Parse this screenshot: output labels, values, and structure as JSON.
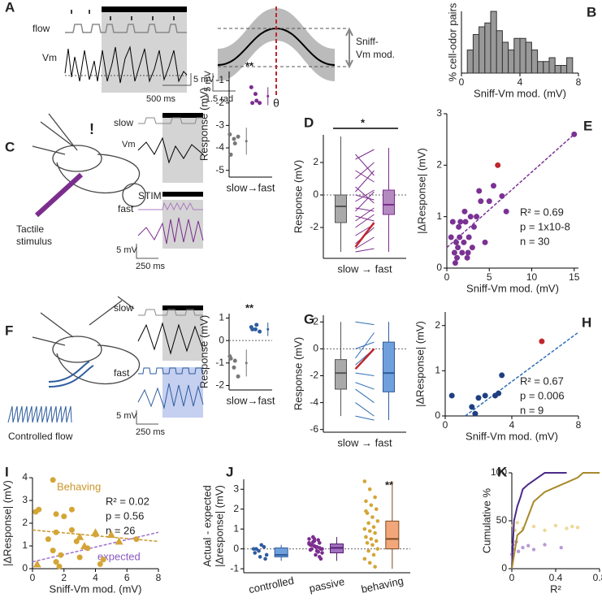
{
  "text": {
    "A": "A",
    "flow": "flow",
    "vm": "Vm",
    "a_scale_v": "5 mV",
    "a_scale_t": "500 ms",
    "a2_scale_v": "5 mV",
    "a2_scale_t": "1.5 rad",
    "theta": "θ",
    "sniff1": "Sniff-",
    "sniff2": "Vm mod.",
    "c_tactile1": "Tactile",
    "c_tactile2": "stimulus",
    "c_excl": "!",
    "c_slow": "slow",
    "c_vm": "Vm",
    "c_stim": "STIM",
    "c_fast": "fast",
    "c_scale_v": "5 mV",
    "c_scale_t": "250 ms",
    "f_slow": "slow",
    "f_fast": "fast",
    "f_scale_v": "5 mV",
    "f_scale_t": "250 ms",
    "f_flow": "Controlled flow"
  },
  "chart_data": [
    {
      "type": "histogram",
      "label": "B",
      "xlabel": "Sniff-Vm mod. (mV)",
      "ylabel": "% cell-odor pairs",
      "bins": [
        0.4,
        0.8,
        1.2,
        1.6,
        2.0,
        2.4,
        2.8,
        3.2,
        3.6,
        4.0,
        4.4,
        4.8,
        5.2,
        5.6,
        6.0,
        6.4,
        6.8,
        7.2,
        7.6
      ],
      "values": [
        6,
        10,
        12,
        13,
        16,
        11,
        8,
        6,
        9,
        9,
        8,
        6,
        3,
        3,
        4,
        2,
        2,
        4
      ],
      "color": "#999999",
      "xlim": [
        0,
        8
      ],
      "xticks": [
        0,
        4,
        8
      ],
      "ylim": [
        0,
        16
      ]
    },
    {
      "type": "dot",
      "label": "C",
      "ylabel": "Response (mV)",
      "xlabel": "slow→fast",
      "annotations": [
        "**"
      ],
      "ylim": [
        -5.3,
        -0.6
      ],
      "yticks": [
        -5,
        -4,
        -3,
        -2,
        -1
      ],
      "series": [
        {
          "color": "#777777",
          "values": [
            -3.4,
            -3.6,
            -3.5,
            -4.3,
            -3.8
          ],
          "mean": -3.7,
          "error": 0.6
        },
        {
          "color": "#7b2d8e",
          "values": [
            -1.3,
            -1.6,
            -2.0,
            -2.0,
            -1.9
          ],
          "mean": -1.7,
          "error": 0.4
        }
      ]
    },
    {
      "type": "box",
      "label": "D",
      "ylabel": "Response (mV)",
      "xlabel": "slow → fast",
      "annotations": [
        "*"
      ],
      "ylim": [
        -3.9,
        3.7
      ],
      "yticks": [
        -2,
        0,
        2
      ],
      "zero_line": true,
      "pair_color": "#7b2d8e",
      "highlight_color": "#c0272d",
      "boxes": [
        {
          "color": "#555555",
          "fill": "#aaaaaa",
          "min": -3.5,
          "q1": -1.7,
          "median": -0.7,
          "q3": 0,
          "max": 3.6
        },
        {
          "color": "#7b2d8e",
          "fill": "#b48ac0",
          "min": -3.5,
          "q1": -1.2,
          "median": -0.6,
          "q3": 0.3,
          "max": 2.9
        }
      ],
      "pairs": [
        [
          2.5,
          1.2
        ],
        [
          2.2,
          2.8
        ],
        [
          1.5,
          0.8
        ],
        [
          1,
          2.0
        ],
        [
          0.5,
          -0.5
        ],
        [
          0.2,
          1.5
        ],
        [
          0,
          -0.3
        ],
        [
          -0.4,
          0.3
        ],
        [
          -0.8,
          -1
        ],
        [
          -1,
          0.2
        ],
        [
          -1.3,
          -1.6
        ],
        [
          -1.6,
          -0.8
        ],
        [
          -2,
          -1.2
        ],
        [
          -2.5,
          -1.8
        ],
        [
          -3,
          -2
        ],
        [
          -3.3,
          -2.6
        ],
        [
          -3.5,
          -3.3
        ]
      ],
      "highlight": [
        -3.2,
        -1.7
      ]
    },
    {
      "type": "scatter",
      "label": "E",
      "xlabel": "Sniff-Vm mod. (mV)",
      "ylabel": "|ΔResponse| (mV)",
      "annotations": [
        "R² = 0.69",
        "p = 1x10-8",
        "n = 30"
      ],
      "xlim": [
        0,
        15.5
      ],
      "xticks": [
        0,
        5,
        10,
        15
      ],
      "ylim": [
        0,
        3
      ],
      "yticks": [
        0,
        1,
        2,
        3
      ],
      "series": [
        {
          "color": "#7b3294",
          "marker": "circle",
          "x": [
            0.5,
            0.7,
            0.9,
            1,
            1.1,
            1.2,
            1.3,
            1.4,
            1.5,
            1.6,
            1.8,
            2,
            2.1,
            2.2,
            2.4,
            2.5,
            2.6,
            2.8,
            3,
            3.2,
            3.5,
            3.8,
            4,
            4.5,
            5,
            5.5,
            6.5,
            7,
            15
          ],
          "values": [
            0.6,
            0.9,
            0.3,
            0.1,
            0.5,
            0.2,
            0.4,
            0.8,
            0.6,
            0.9,
            0.3,
            0.5,
            1.1,
            0.9,
            0.2,
            0.3,
            0.6,
            1.0,
            0.4,
            0.8,
            1.0,
            1.5,
            1.3,
            0.5,
            1.3,
            1.6,
            1.4,
            1.1,
            2.6
          ]
        },
        {
          "color": "#c0272d",
          "marker": "circle",
          "x": [
            6
          ],
          "values": [
            2
          ]
        }
      ],
      "fits": [
        {
          "color": "#7b3294",
          "x": [
            0,
            15
          ],
          "values": [
            0.4,
            2.6
          ]
        }
      ]
    },
    {
      "type": "dot",
      "label": "F",
      "ylabel": "Response (mV)",
      "xlabel": "slow→fast",
      "annotations": [
        "**"
      ],
      "ylim": [
        -2.2,
        1.2
      ],
      "yticks": [
        -2,
        -1,
        0,
        1
      ],
      "zero_line": true,
      "series": [
        {
          "color": "#777777",
          "values": [
            -0.7,
            -1.2,
            -1.6,
            -0.8,
            -0.9
          ],
          "mean": -1.0,
          "error": 0.6
        },
        {
          "color": "#2e5c9e",
          "values": [
            0.6,
            0.5,
            0.4,
            0.5,
            0.7
          ],
          "mean": 0.5,
          "error": 0.3
        }
      ]
    },
    {
      "type": "box",
      "label": "G",
      "ylabel": "Response (mV)",
      "xlabel": "slow → fast",
      "ylim": [
        -6.2,
        2.5
      ],
      "yticks": [
        -6,
        -4,
        -2,
        0,
        2
      ],
      "zero_line": true,
      "pair_color": "#2e6fb5",
      "highlight_color": "#c0272d",
      "boxes": [
        {
          "color": "#555555",
          "fill": "#aaaaaa",
          "min": -5,
          "q1": -3,
          "median": -1.8,
          "q3": -0.8,
          "max": 2
        },
        {
          "color": "#2e5c9e",
          "fill": "#6fa0dc",
          "min": -5.3,
          "q1": -3.2,
          "median": -1.8,
          "q3": 0.5,
          "max": 2
        }
      ],
      "pairs": [
        [
          2,
          1.8
        ],
        [
          0,
          0.5
        ],
        [
          -0.7,
          1.2
        ],
        [
          -1.2,
          0
        ],
        [
          -1.8,
          -2
        ],
        [
          -2.5,
          -3
        ],
        [
          -3,
          -4
        ],
        [
          -4,
          -5
        ],
        [
          -5,
          -5.3
        ]
      ],
      "highlight": [
        -1.5,
        0
      ]
    },
    {
      "type": "scatter",
      "label": "H",
      "xlabel": "Sniff-Vm mod. (mV)",
      "ylabel": "|ΔResponse| (mV)",
      "annotations": [
        "R² = 0.67",
        "p = 0.006",
        "n = 9"
      ],
      "xlim": [
        0,
        8
      ],
      "xticks": [
        0,
        4,
        8
      ],
      "ylim": [
        0,
        2.3
      ],
      "yticks": [
        0,
        1,
        2
      ],
      "series": [
        {
          "color": "#1f3f80",
          "marker": "circle",
          "x": [
            0.4,
            1.6,
            1.8,
            2,
            2.4,
            3,
            3.2,
            3.4
          ],
          "values": [
            0.45,
            0.2,
            0.05,
            0.4,
            0.45,
            0.45,
            0.5,
            0.9
          ]
        },
        {
          "color": "#c0272d",
          "marker": "circle",
          "x": [
            5.8
          ],
          "values": [
            1.65
          ]
        }
      ],
      "fits": [
        {
          "color": "#2e6fb5",
          "x": [
            1.2,
            8
          ],
          "values": [
            0,
            1.85
          ]
        }
      ]
    },
    {
      "type": "scatter",
      "label": "I",
      "xlabel": "Sniff-Vm mod. (mV)",
      "ylabel": "|ΔResponse| (mV)",
      "annotations": [
        "Behaving",
        "R² = 0.02",
        "p = 0.56",
        "n = 26",
        "expected"
      ],
      "xlim": [
        0,
        8
      ],
      "xticks": [
        0,
        2,
        4,
        6,
        8
      ],
      "ylim": [
        0,
        4
      ],
      "yticks": [
        0,
        1,
        2,
        3,
        4
      ],
      "series": [
        {
          "color": "#d4a536",
          "marker": "circle",
          "x": [
            0.2,
            0.4,
            1.3,
            1.5,
            1,
            1.5,
            2,
            2.5,
            2.8,
            1.3,
            1.8,
            1.5,
            3,
            3.5,
            4,
            4.5,
            4.3,
            2.5,
            6.6,
            1.7
          ],
          "values": [
            2.5,
            2.6,
            3.9,
            2.4,
            1.3,
            1.6,
            2.3,
            1.7,
            1.2,
            0.8,
            0.6,
            0.3,
            0.5,
            0.9,
            1.5,
            0.4,
            0.2,
            2.6,
            1.3,
            0.1
          ]
        },
        {
          "color": "#d4a536",
          "marker": "triangle",
          "x": [
            0.3,
            3,
            3.3,
            4,
            5,
            5.5
          ],
          "values": [
            0.2,
            1.4,
            1.0,
            1.6,
            1.5,
            1.2
          ]
        }
      ],
      "fits": [
        {
          "color": "#c9962a",
          "x": [
            0,
            8
          ],
          "values": [
            1.7,
            1.2
          ]
        },
        {
          "color": "#a070d0",
          "x": [
            0,
            8
          ],
          "values": [
            0.3,
            1.6
          ]
        }
      ]
    },
    {
      "type": "strip",
      "label": "J",
      "ylabel": [
        "Actual - expected",
        "|Δresponse| (mV)"
      ],
      "categories": [
        "controlled",
        "passive",
        "behaving"
      ],
      "annotations": [
        "**"
      ],
      "ylim": [
        -1.2,
        3.5
      ],
      "yticks": [
        -1,
        0,
        1,
        2,
        3
      ],
      "zero_line": true,
      "series": [
        {
          "color": "#2e5c9e",
          "values": [
            0,
            -0.1,
            0.1,
            -0.2,
            -0.4,
            -0.5,
            0,
            0.2,
            -0.3
          ]
        },
        {
          "color": "#7b2d8e",
          "values": [
            0.5,
            0.4,
            0.3,
            0.2,
            0.1,
            0,
            0,
            -0.1,
            -0.2,
            0.6,
            0.45,
            0.3,
            0.15,
            0.05,
            -0.05,
            -0.3,
            -0.5,
            0.2,
            0.1,
            0,
            0.35,
            -0.15,
            0.25,
            0.5,
            -0.4
          ]
        },
        {
          "color": "#d4a536",
          "values": [
            3.4,
            3.0,
            2.6,
            2.4,
            2.2,
            2.0,
            1.8,
            1.6,
            1.4,
            1.3,
            1.1,
            1.0,
            0.9,
            0.8,
            0.6,
            0.5,
            0.4,
            0.3,
            0.2,
            0,
            -0.1,
            -0.3,
            -0.5,
            -0.7,
            -0.9,
            1.9
          ]
        }
      ],
      "boxes": [
        {
          "color": "#2e5c9e",
          "fill": "#6fa0dc",
          "min": -0.6,
          "q1": -0.4,
          "median": -0.3,
          "q3": 0.05,
          "max": 0.2
        },
        {
          "color": "#5a1f70",
          "fill": "#a070c0",
          "min": -0.6,
          "q1": -0.2,
          "median": 0.05,
          "q3": 0.25,
          "max": 0.6
        },
        {
          "color": "#7a4a20",
          "fill": "#f2a77a",
          "min": -1,
          "q1": 0,
          "median": 0.5,
          "q3": 1.4,
          "max": 3.4
        }
      ]
    },
    {
      "type": "line",
      "label": "K",
      "xlabel": "R²",
      "ylabel": "Cumulative %",
      "xlim": [
        0,
        0.8
      ],
      "xticks": [
        0,
        0.4,
        0.8
      ],
      "ylim": [
        0,
        100
      ],
      "yticks": [
        0,
        50,
        100
      ],
      "series": [
        {
          "color": "#4b2a8a",
          "x": [
            0,
            0.02,
            0.05,
            0.08,
            0.1,
            0.15,
            0.2,
            0.25,
            0.3,
            0.35,
            0.5
          ],
          "values": [
            0,
            50,
            65,
            75,
            83,
            88,
            92,
            96,
            100,
            100,
            100
          ]
        },
        {
          "color": "#a8892a",
          "x": [
            0,
            0.05,
            0.1,
            0.15,
            0.2,
            0.3,
            0.4,
            0.5,
            0.6,
            0.65,
            0.8
          ],
          "values": [
            0,
            35,
            40,
            55,
            70,
            80,
            85,
            90,
            95,
            100,
            100
          ]
        }
      ],
      "dots": [
        {
          "color": "#e8cf7e",
          "x": [
            0.01,
            0.03,
            0.05,
            0.1,
            0.2,
            0.3,
            0.4,
            0.5,
            0.55,
            0.6
          ],
          "values": [
            45,
            40,
            48,
            42,
            44,
            40,
            45,
            42,
            44,
            43
          ]
        },
        {
          "color": "#a782c8",
          "x": [
            0,
            0.01,
            0.02,
            0.04,
            0.06,
            0.1,
            0.15,
            0.2,
            0.3,
            0.45
          ],
          "values": [
            15,
            25,
            20,
            28,
            18,
            22,
            24,
            20,
            25,
            22
          ]
        }
      ]
    }
  ]
}
